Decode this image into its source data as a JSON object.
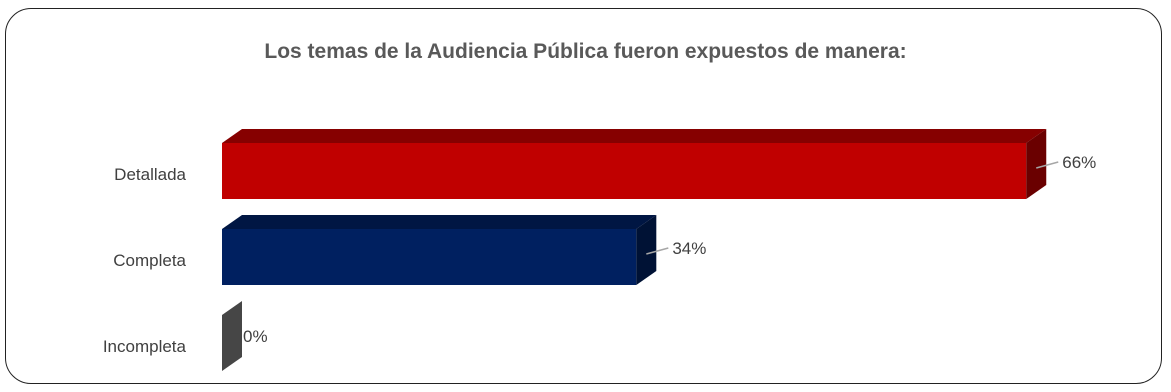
{
  "chart_data": {
    "type": "bar",
    "orientation": "horizontal",
    "style": "3d",
    "title": "Los temas de la Audiencia Pública fueron expuestos de manera:",
    "categories": [
      "Detallada",
      "Completa",
      "Incompleta"
    ],
    "values": [
      66,
      34,
      0
    ],
    "value_labels": [
      "66%",
      "34%",
      "0%"
    ],
    "unit": "%",
    "xlim": [
      0,
      70
    ],
    "colors": [
      "#c00000",
      "#002060",
      "#7f7f7f"
    ],
    "grid": false,
    "legend": "none"
  }
}
